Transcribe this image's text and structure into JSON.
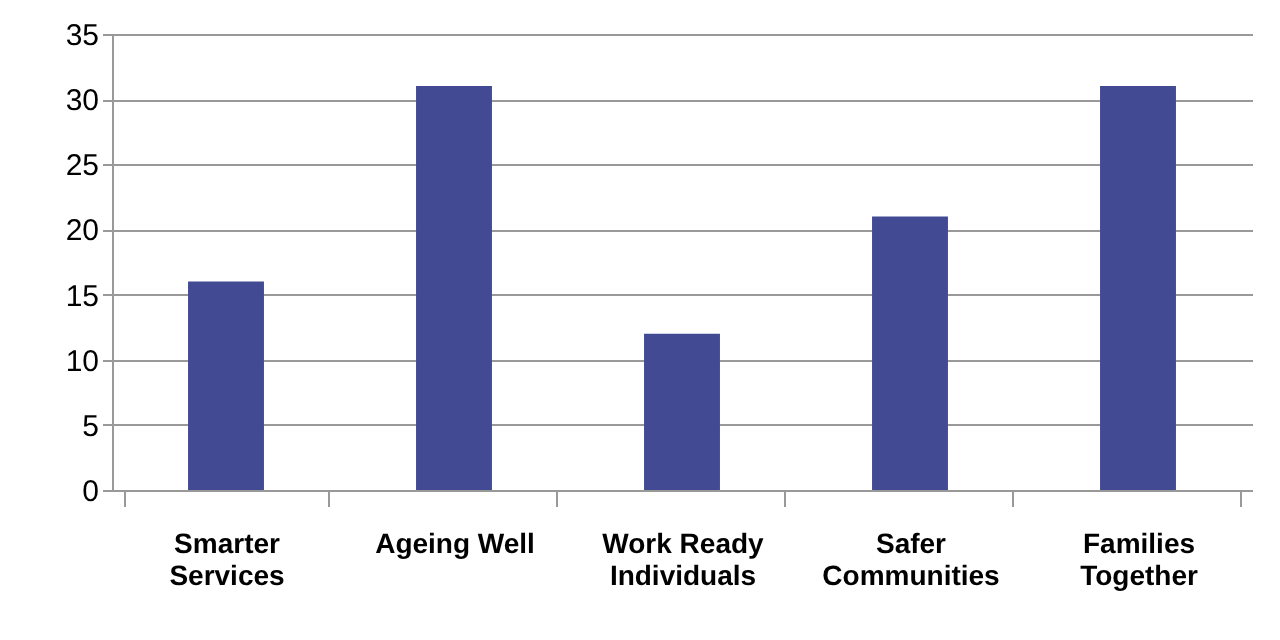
{
  "chart_data": {
    "type": "bar",
    "categories": [
      "Smarter Services",
      "Ageing Well",
      "Work Ready Individuals",
      "Safer Communities",
      "Families Together"
    ],
    "values": [
      16,
      31,
      12,
      21,
      31
    ],
    "color": "#424a93",
    "ylim": [
      0,
      35
    ],
    "yticks": [
      0,
      5,
      10,
      15,
      20,
      25,
      30,
      35
    ],
    "grid": "y"
  }
}
